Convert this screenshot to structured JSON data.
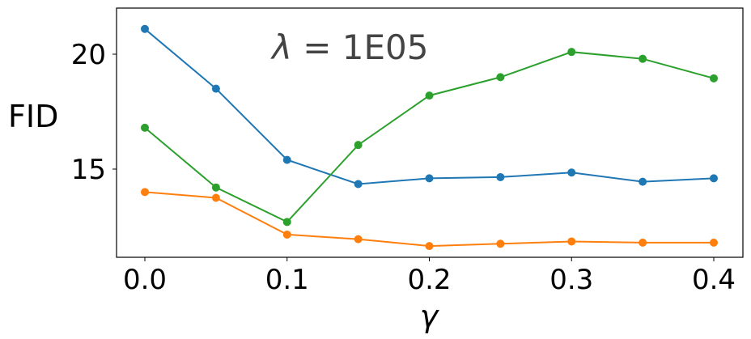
{
  "chart_data": {
    "type": "line",
    "title": "",
    "annotation": {
      "text": "λ = 1E05",
      "symbol": "λ",
      "equals": " = ",
      "value": "1E05",
      "color": "#444444"
    },
    "xlabel": "γ",
    "ylabel": "FID",
    "x": [
      0.0,
      0.05,
      0.1,
      0.15,
      0.2,
      0.25,
      0.3,
      0.35,
      0.4
    ],
    "xticks": [
      0.0,
      0.1,
      0.2,
      0.3,
      0.4
    ],
    "xtick_labels": [
      "0.0",
      "0.1",
      "0.2",
      "0.3",
      "0.4"
    ],
    "yticks": [
      15,
      20
    ],
    "ytick_labels": [
      "15",
      "20"
    ],
    "xlim": [
      -0.02,
      0.42
    ],
    "ylim": [
      11.3,
      22.1
    ],
    "grid": false,
    "legend": null,
    "series": [
      {
        "name": "blue",
        "color": "#1f77b4",
        "marker": "circle",
        "values": [
          21.1,
          18.5,
          15.4,
          14.35,
          14.6,
          14.65,
          14.85,
          14.45,
          14.6
        ]
      },
      {
        "name": "orange",
        "color": "#ff7f0e",
        "marker": "circle",
        "values": [
          14.0,
          13.75,
          12.15,
          11.95,
          11.65,
          11.75,
          11.85,
          11.8,
          11.8
        ]
      },
      {
        "name": "green",
        "color": "#2ca02c",
        "marker": "circle",
        "values": [
          16.8,
          14.2,
          12.7,
          16.05,
          18.2,
          19.0,
          20.1,
          19.8,
          18.95
        ]
      }
    ]
  }
}
